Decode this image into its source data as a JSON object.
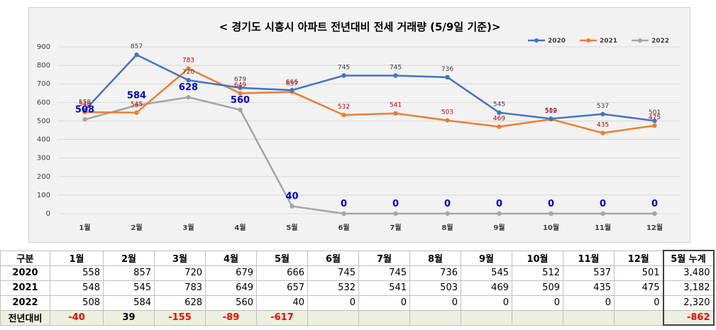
{
  "chart_data": {
    "type": "line",
    "title": "< 경기도 시흥시  아파트 전년대비 전세 거래량 (5/9일 기준)>",
    "categories": [
      "1월",
      "2월",
      "3월",
      "4월",
      "5월",
      "6월",
      "7월",
      "8월",
      "9월",
      "10월",
      "11월",
      "12월"
    ],
    "ylim": [
      0,
      900
    ],
    "yticks": [
      0,
      100,
      200,
      300,
      400,
      500,
      600,
      700,
      800,
      900
    ],
    "grid": true,
    "legend_position": "top-right",
    "series": [
      {
        "name": "2020",
        "color": "#4472c4",
        "values": [
          558,
          857,
          720,
          679,
          666,
          745,
          745,
          736,
          545,
          512,
          537,
          501
        ],
        "label_color": "#404040",
        "label_style": "normal"
      },
      {
        "name": "2021",
        "color": "#ed7d31",
        "values": [
          548,
          545,
          783,
          649,
          657,
          532,
          541,
          503,
          469,
          509,
          435,
          475
        ],
        "label_color": "#c00000",
        "label_style": "normal"
      },
      {
        "name": "2022",
        "color": "#a5a5a5",
        "values": [
          508,
          584,
          628,
          560,
          40,
          0,
          0,
          0,
          0,
          0,
          0,
          0
        ],
        "label_color": "#0000cc",
        "label_style": "bold"
      }
    ]
  },
  "table": {
    "header": [
      "구분",
      "1월",
      "2월",
      "3월",
      "4월",
      "5월",
      "6월",
      "7월",
      "8월",
      "9월",
      "10월",
      "11월",
      "12월",
      "5월 누계"
    ],
    "rows": [
      {
        "label": "2020",
        "values": [
          "558",
          "857",
          "720",
          "679",
          "666",
          "745",
          "745",
          "736",
          "545",
          "512",
          "537",
          "501"
        ],
        "total": "3,480"
      },
      {
        "label": "2021",
        "values": [
          "548",
          "545",
          "783",
          "649",
          "657",
          "532",
          "541",
          "503",
          "469",
          "509",
          "435",
          "475"
        ],
        "total": "3,182"
      },
      {
        "label": "2022",
        "values": [
          "508",
          "584",
          "628",
          "560",
          "40",
          "0",
          "0",
          "0",
          "0",
          "0",
          "0",
          "0"
        ],
        "total": "2,320"
      }
    ],
    "diff": {
      "label": "전년대비",
      "values": [
        "-40",
        "39",
        "-155",
        "-89",
        "-617",
        "",
        "",
        "",
        "",
        "",
        "",
        ""
      ],
      "total": "-862"
    }
  }
}
